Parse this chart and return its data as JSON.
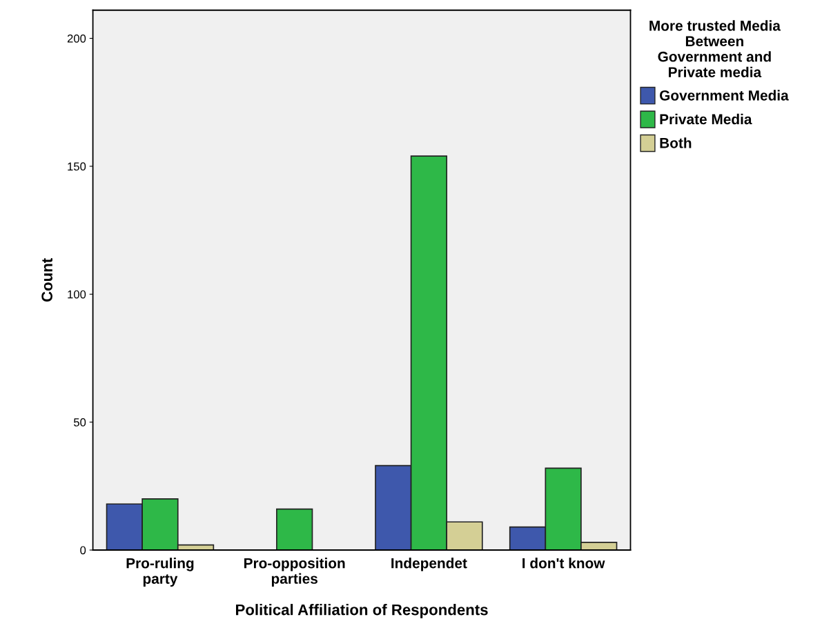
{
  "chart_data": {
    "type": "bar",
    "xlabel": "Political Affiliation of Respondents",
    "ylabel": "Count",
    "legend_title": "More trusted Media\nBetween\nGovernment and\nPrivate media",
    "categories": [
      "Pro-ruling\nparty",
      "Pro-opposition\nparties",
      "Independet",
      "I don't know"
    ],
    "series": [
      {
        "name": "Government Media",
        "color": "#3e58ac",
        "values": [
          18,
          null,
          33,
          9
        ]
      },
      {
        "name": "Private Media",
        "color": "#2eb848",
        "values": [
          20,
          16,
          154,
          32
        ]
      },
      {
        "name": "Both",
        "color": "#d4cf95",
        "values": [
          2,
          null,
          11,
          3
        ]
      }
    ],
    "ylim": [
      0,
      211
    ],
    "yticks": [
      0,
      50,
      100,
      150,
      200
    ],
    "grid": false,
    "legend": "right"
  }
}
